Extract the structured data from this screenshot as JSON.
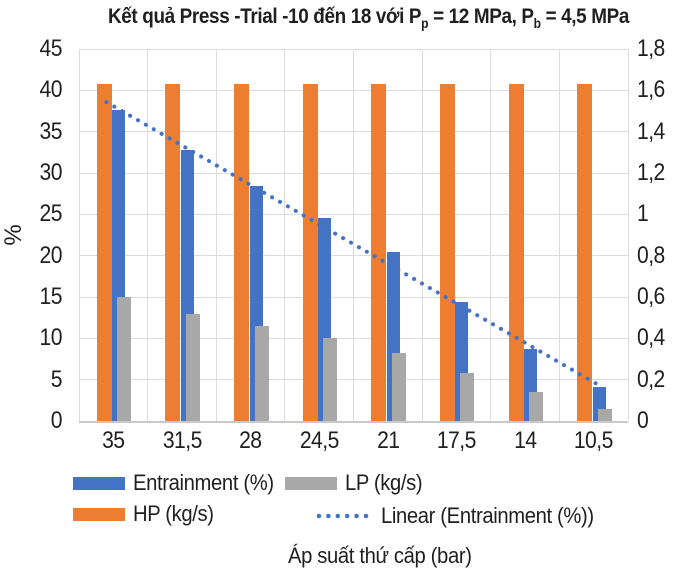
{
  "chart_data": {
    "type": "bar",
    "overlay": "linear-trendline",
    "title": "Kết quả Press -Trial -10 đến 18 với Pp = 12 MPa, Pb = 4,5 MPa",
    "title_parts": [
      {
        "text": "Kết quả Press -Trial -10 đến 18 với P"
      },
      {
        "text": "p",
        "sub": true
      },
      {
        "text": " = 12 MPa, P"
      },
      {
        "text": "b",
        "sub": true
      },
      {
        "text": " = 4,5 MPa"
      }
    ],
    "categories": [
      "35",
      "31,5",
      "28",
      "24,5",
      "21",
      "17,5",
      "14",
      "10,5"
    ],
    "xlabel": "Áp suất thứ cấp (bar)",
    "ylabel_left": "%",
    "left_axis": {
      "min": 0,
      "max": 45,
      "step": 5,
      "ticks": [
        "45",
        "40",
        "35",
        "30",
        "25",
        "20",
        "15",
        "10",
        "5",
        "0"
      ]
    },
    "right_axis": {
      "min": 0,
      "max": 1.8,
      "step": 0.2,
      "ticks": [
        "1,8",
        "1,6",
        "1,4",
        "1,2",
        "1",
        "0,8",
        "0,6",
        "0,4",
        "0,2",
        "0"
      ]
    },
    "series": [
      {
        "key": "entrainment",
        "name": "Entrainment (%)",
        "axis": "left",
        "color": "#4472C4",
        "values": [
          37.6,
          32.8,
          28.4,
          24.6,
          20.5,
          14.4,
          8.7,
          4.1
        ]
      },
      {
        "key": "lp",
        "name": "LP (kg/s)",
        "axis": "right",
        "color": "#A8A8A8",
        "values": [
          0.6,
          0.52,
          0.46,
          0.4,
          0.33,
          0.23,
          0.14,
          0.06
        ]
      },
      {
        "key": "hp",
        "name": "HP (kg/s)",
        "axis": "right",
        "color": "#ED7D31",
        "values": [
          1.63,
          1.63,
          1.63,
          1.63,
          1.63,
          1.63,
          1.63,
          1.63
        ]
      }
    ],
    "trendline": {
      "name": "Linear (Entrainment (%))",
      "axis": "left",
      "color": "#4472C4",
      "start_value": 38.1,
      "end_value": 4.7
    },
    "legend": [
      {
        "label": "Entrainment (%)",
        "type": "bar",
        "color": "#4472C4"
      },
      {
        "label": "LP (kg/s)",
        "type": "bar",
        "color": "#A8A8A8"
      },
      {
        "label": "HP (kg/s)",
        "type": "bar",
        "color": "#ED7D31"
      },
      {
        "label": "Linear (Entrainment (%))",
        "type": "dotted",
        "color": "#4472C4"
      }
    ],
    "grid": true,
    "legend_position": "bottom",
    "colors": {
      "gridline": "#DCDCDC",
      "axis_line": "#C9C9C9",
      "text": "#1F1F1F"
    }
  }
}
